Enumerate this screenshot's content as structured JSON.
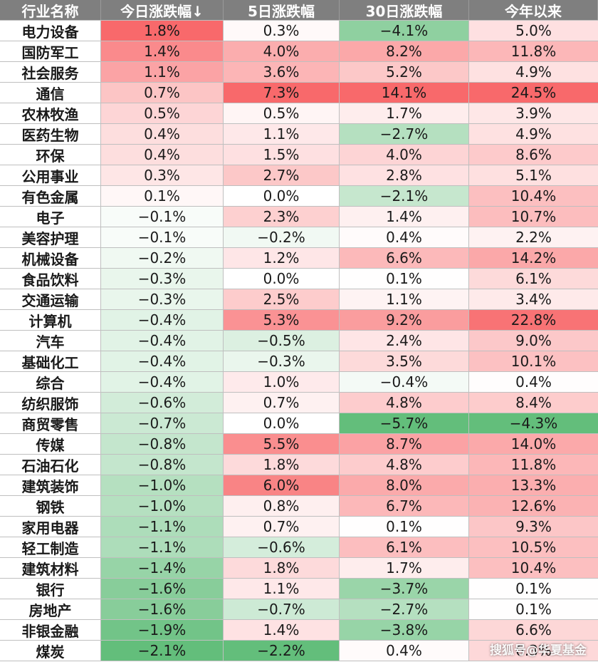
{
  "columns": [
    "行业名称",
    "今日涨跌幅↓",
    "5日涨跌幅",
    "30日涨跌幅",
    "今年以来"
  ],
  "rows": [
    {
      "name": "电力设备",
      "d1": 1.8,
      "d5": 0.3,
      "d30": -4.1,
      "ytd": 5.0
    },
    {
      "name": "国防军工",
      "d1": 1.4,
      "d5": 4.0,
      "d30": 8.2,
      "ytd": 11.8
    },
    {
      "name": "社会服务",
      "d1": 1.1,
      "d5": 3.6,
      "d30": 5.2,
      "ytd": 4.9
    },
    {
      "name": "通信",
      "d1": 0.7,
      "d5": 7.3,
      "d30": 14.1,
      "ytd": 24.5
    },
    {
      "name": "农林牧渔",
      "d1": 0.5,
      "d5": 0.5,
      "d30": 1.7,
      "ytd": 3.9
    },
    {
      "name": "医药生物",
      "d1": 0.4,
      "d5": 1.1,
      "d30": -2.7,
      "ytd": 4.9
    },
    {
      "name": "环保",
      "d1": 0.4,
      "d5": 1.5,
      "d30": 4.0,
      "ytd": 8.6
    },
    {
      "name": "公用事业",
      "d1": 0.3,
      "d5": 2.7,
      "d30": 2.8,
      "ytd": 5.1
    },
    {
      "name": "有色金属",
      "d1": 0.1,
      "d5": 0.0,
      "d30": -2.1,
      "ytd": 10.4
    },
    {
      "name": "电子",
      "d1": -0.1,
      "d5": 2.3,
      "d30": 1.4,
      "ytd": 10.7
    },
    {
      "name": "美容护理",
      "d1": -0.1,
      "d5": -0.2,
      "d30": 0.4,
      "ytd": 2.2
    },
    {
      "name": "机械设备",
      "d1": -0.2,
      "d5": 1.2,
      "d30": 6.6,
      "ytd": 14.2
    },
    {
      "name": "食品饮料",
      "d1": -0.3,
      "d5": 0.0,
      "d30": 0.1,
      "ytd": 6.1
    },
    {
      "name": "交通运输",
      "d1": -0.3,
      "d5": 2.5,
      "d30": 1.1,
      "ytd": 3.4
    },
    {
      "name": "计算机",
      "d1": -0.4,
      "d5": 5.3,
      "d30": 9.2,
      "ytd": 22.8
    },
    {
      "name": "汽车",
      "d1": -0.4,
      "d5": -0.5,
      "d30": 2.4,
      "ytd": 9.0
    },
    {
      "name": "基础化工",
      "d1": -0.4,
      "d5": -0.3,
      "d30": 3.5,
      "ytd": 10.1
    },
    {
      "name": "综合",
      "d1": -0.4,
      "d5": 1.0,
      "d30": -0.4,
      "ytd": 0.4
    },
    {
      "name": "纺织服饰",
      "d1": -0.6,
      "d5": 0.7,
      "d30": 4.8,
      "ytd": 8.4
    },
    {
      "name": "商贸零售",
      "d1": -0.7,
      "d5": 0.0,
      "d30": -5.7,
      "ytd": -4.3
    },
    {
      "name": "传媒",
      "d1": -0.8,
      "d5": 5.5,
      "d30": 8.7,
      "ytd": 14.0
    },
    {
      "name": "石油石化",
      "d1": -0.8,
      "d5": 1.8,
      "d30": 4.8,
      "ytd": 11.8
    },
    {
      "name": "建筑装饰",
      "d1": -1.0,
      "d5": 6.0,
      "d30": 8.0,
      "ytd": 13.3
    },
    {
      "name": "钢铁",
      "d1": -1.0,
      "d5": 0.8,
      "d30": 6.7,
      "ytd": 12.6
    },
    {
      "name": "家用电器",
      "d1": -1.1,
      "d5": 0.7,
      "d30": 0.1,
      "ytd": 9.3
    },
    {
      "name": "轻工制造",
      "d1": -1.1,
      "d5": -0.6,
      "d30": 6.1,
      "ytd": 10.5
    },
    {
      "name": "建筑材料",
      "d1": -1.4,
      "d5": 1.8,
      "d30": 1.7,
      "ytd": 10.4
    },
    {
      "name": "银行",
      "d1": -1.6,
      "d5": 1.1,
      "d30": -3.7,
      "ytd": 0.1
    },
    {
      "name": "房地产",
      "d1": -1.6,
      "d5": -0.7,
      "d30": -2.7,
      "ytd": 0.1
    },
    {
      "name": "非银金融",
      "d1": -1.9,
      "d5": 1.4,
      "d30": -3.8,
      "ytd": 6.6
    },
    {
      "name": "煤炭",
      "d1": -2.1,
      "d5": -2.2,
      "d30": 0.4,
      "ytd": 6.3
    }
  ],
  "colors": {
    "header_bg": "#7f7f7f",
    "header_text": "#ffffff",
    "positive_max": "#f8696b",
    "negative_max": "#63be7b",
    "neutral": "#ffffff",
    "grid": "#bfbfbf"
  },
  "watermark": "搜狐号@华夏基金"
}
